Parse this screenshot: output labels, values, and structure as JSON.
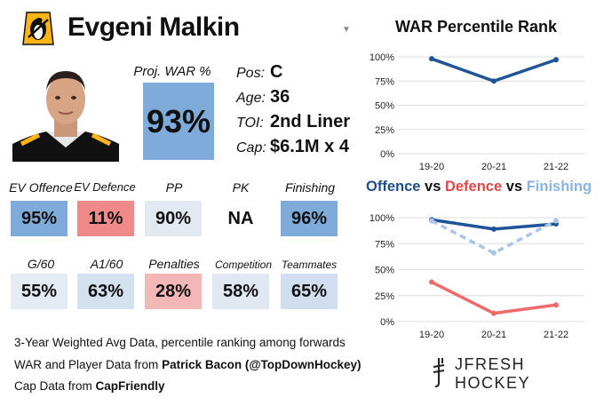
{
  "header": {
    "player_name": "Evgeni Malkin",
    "logo_icon": "penguins-logo-icon",
    "caret_icon": "chevron-down-icon"
  },
  "projected": {
    "label": "Proj. WAR %",
    "value": "93%",
    "color": "#7eabd9"
  },
  "info": [
    {
      "label": "Pos:",
      "value": "C"
    },
    {
      "label": "Age:",
      "value": "36"
    },
    {
      "label": "TOI:",
      "value": "2nd Liner"
    },
    {
      "label": "Cap:",
      "value": "$6.1M x 4"
    }
  ],
  "stats_row1": [
    {
      "label": "EV Offence",
      "value": "95%",
      "color": "#7eabd9"
    },
    {
      "label": "EV Defence",
      "value": "11%",
      "color": "#f08a8a"
    },
    {
      "label": "PP",
      "value": "90%",
      "color": "#e2e9f1"
    },
    {
      "label": "PK",
      "value": "NA",
      "color": "#ffffff"
    },
    {
      "label": "Finishing",
      "value": "96%",
      "color": "#7eabd9"
    }
  ],
  "stats_row2": [
    {
      "label": "G/60",
      "value": "55%",
      "color": "#e5ebf3"
    },
    {
      "label": "A1/60",
      "value": "63%",
      "color": "#d4e1ef"
    },
    {
      "label": "Penalties",
      "value": "28%",
      "color": "#f4b7b7"
    },
    {
      "label": "Competition",
      "value": "58%",
      "color": "#e1e8f1"
    },
    {
      "label": "Teammates",
      "value": "65%",
      "color": "#d0def0"
    }
  ],
  "footer": {
    "line1": "3-Year Weighted Avg Data, percentile ranking among forwards",
    "line2_prefix": "WAR and Player Data from ",
    "line2_bold": "Patrick Bacon (@TopDownHockey)",
    "line3_prefix": "Cap Data from ",
    "line3_bold": "CapFriendly"
  },
  "brand": {
    "name": "JFRESH HOCKEY",
    "icon": "jfresh-logo-icon"
  },
  "chart_data": [
    {
      "type": "line",
      "title": "WAR Percentile Rank",
      "categories": [
        "19-20",
        "20-21",
        "21-22"
      ],
      "series": [
        {
          "values": [
            98,
            75,
            97
          ],
          "color": "#1f5596",
          "style": "solid"
        }
      ],
      "ylim": [
        0,
        100
      ],
      "yticks": [
        "0%",
        "25%",
        "50%",
        "75%",
        "100%"
      ],
      "grid": true
    },
    {
      "type": "line",
      "title_parts": [
        {
          "text": "Offence",
          "color": "#1f4e8c"
        },
        {
          "text": " vs ",
          "color": "#111111"
        },
        {
          "text": "Defence",
          "color": "#e04848"
        },
        {
          "text": " vs ",
          "color": "#111111"
        },
        {
          "text": "Finishing",
          "color": "#8ab4e0"
        }
      ],
      "categories": [
        "19-20",
        "20-21",
        "21-22"
      ],
      "series": [
        {
          "values": [
            98,
            89,
            94
          ],
          "color": "#1f5596",
          "style": "solid"
        },
        {
          "values": [
            38,
            8,
            16
          ],
          "color": "#ee6b6b",
          "style": "solid"
        },
        {
          "values": [
            97,
            66,
            97
          ],
          "color": "#a9c6e6",
          "style": "dashed"
        }
      ],
      "ylim": [
        0,
        100
      ],
      "yticks": [
        "0%",
        "25%",
        "50%",
        "75%",
        "100%"
      ],
      "grid": true
    }
  ]
}
